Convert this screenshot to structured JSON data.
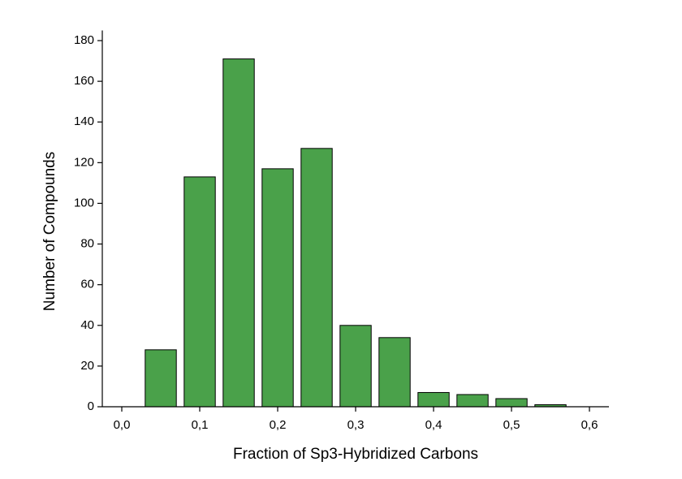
{
  "chart_data": {
    "type": "histogram",
    "x_label": "Fraction of Sp3-Hybridized Carbons",
    "y_label": "Number of Compounds",
    "bins": [
      0.025,
      0.075,
      0.125,
      0.175,
      0.225,
      0.275,
      0.325,
      0.375,
      0.425,
      0.475,
      0.525,
      0.575
    ],
    "values": [
      28,
      113,
      171,
      117,
      127,
      40,
      34,
      7,
      6,
      4,
      1
    ],
    "color": "#4aa14a",
    "xlim": [
      -0.025,
      0.625
    ],
    "xticks": [
      {
        "value": 0,
        "label": "0,0"
      },
      {
        "value": 0.1,
        "label": "0,1"
      },
      {
        "value": 0.2,
        "label": "0,2"
      },
      {
        "value": 0.3,
        "label": "0,3"
      },
      {
        "value": 0.4,
        "label": "0,4"
      },
      {
        "value": 0.5,
        "label": "0,5"
      },
      {
        "value": 0.6,
        "label": "0,6"
      }
    ],
    "ylim": [
      0,
      185
    ],
    "yticks": [
      0,
      20,
      40,
      60,
      80,
      100,
      120,
      140,
      160,
      180
    ],
    "grid": false
  }
}
